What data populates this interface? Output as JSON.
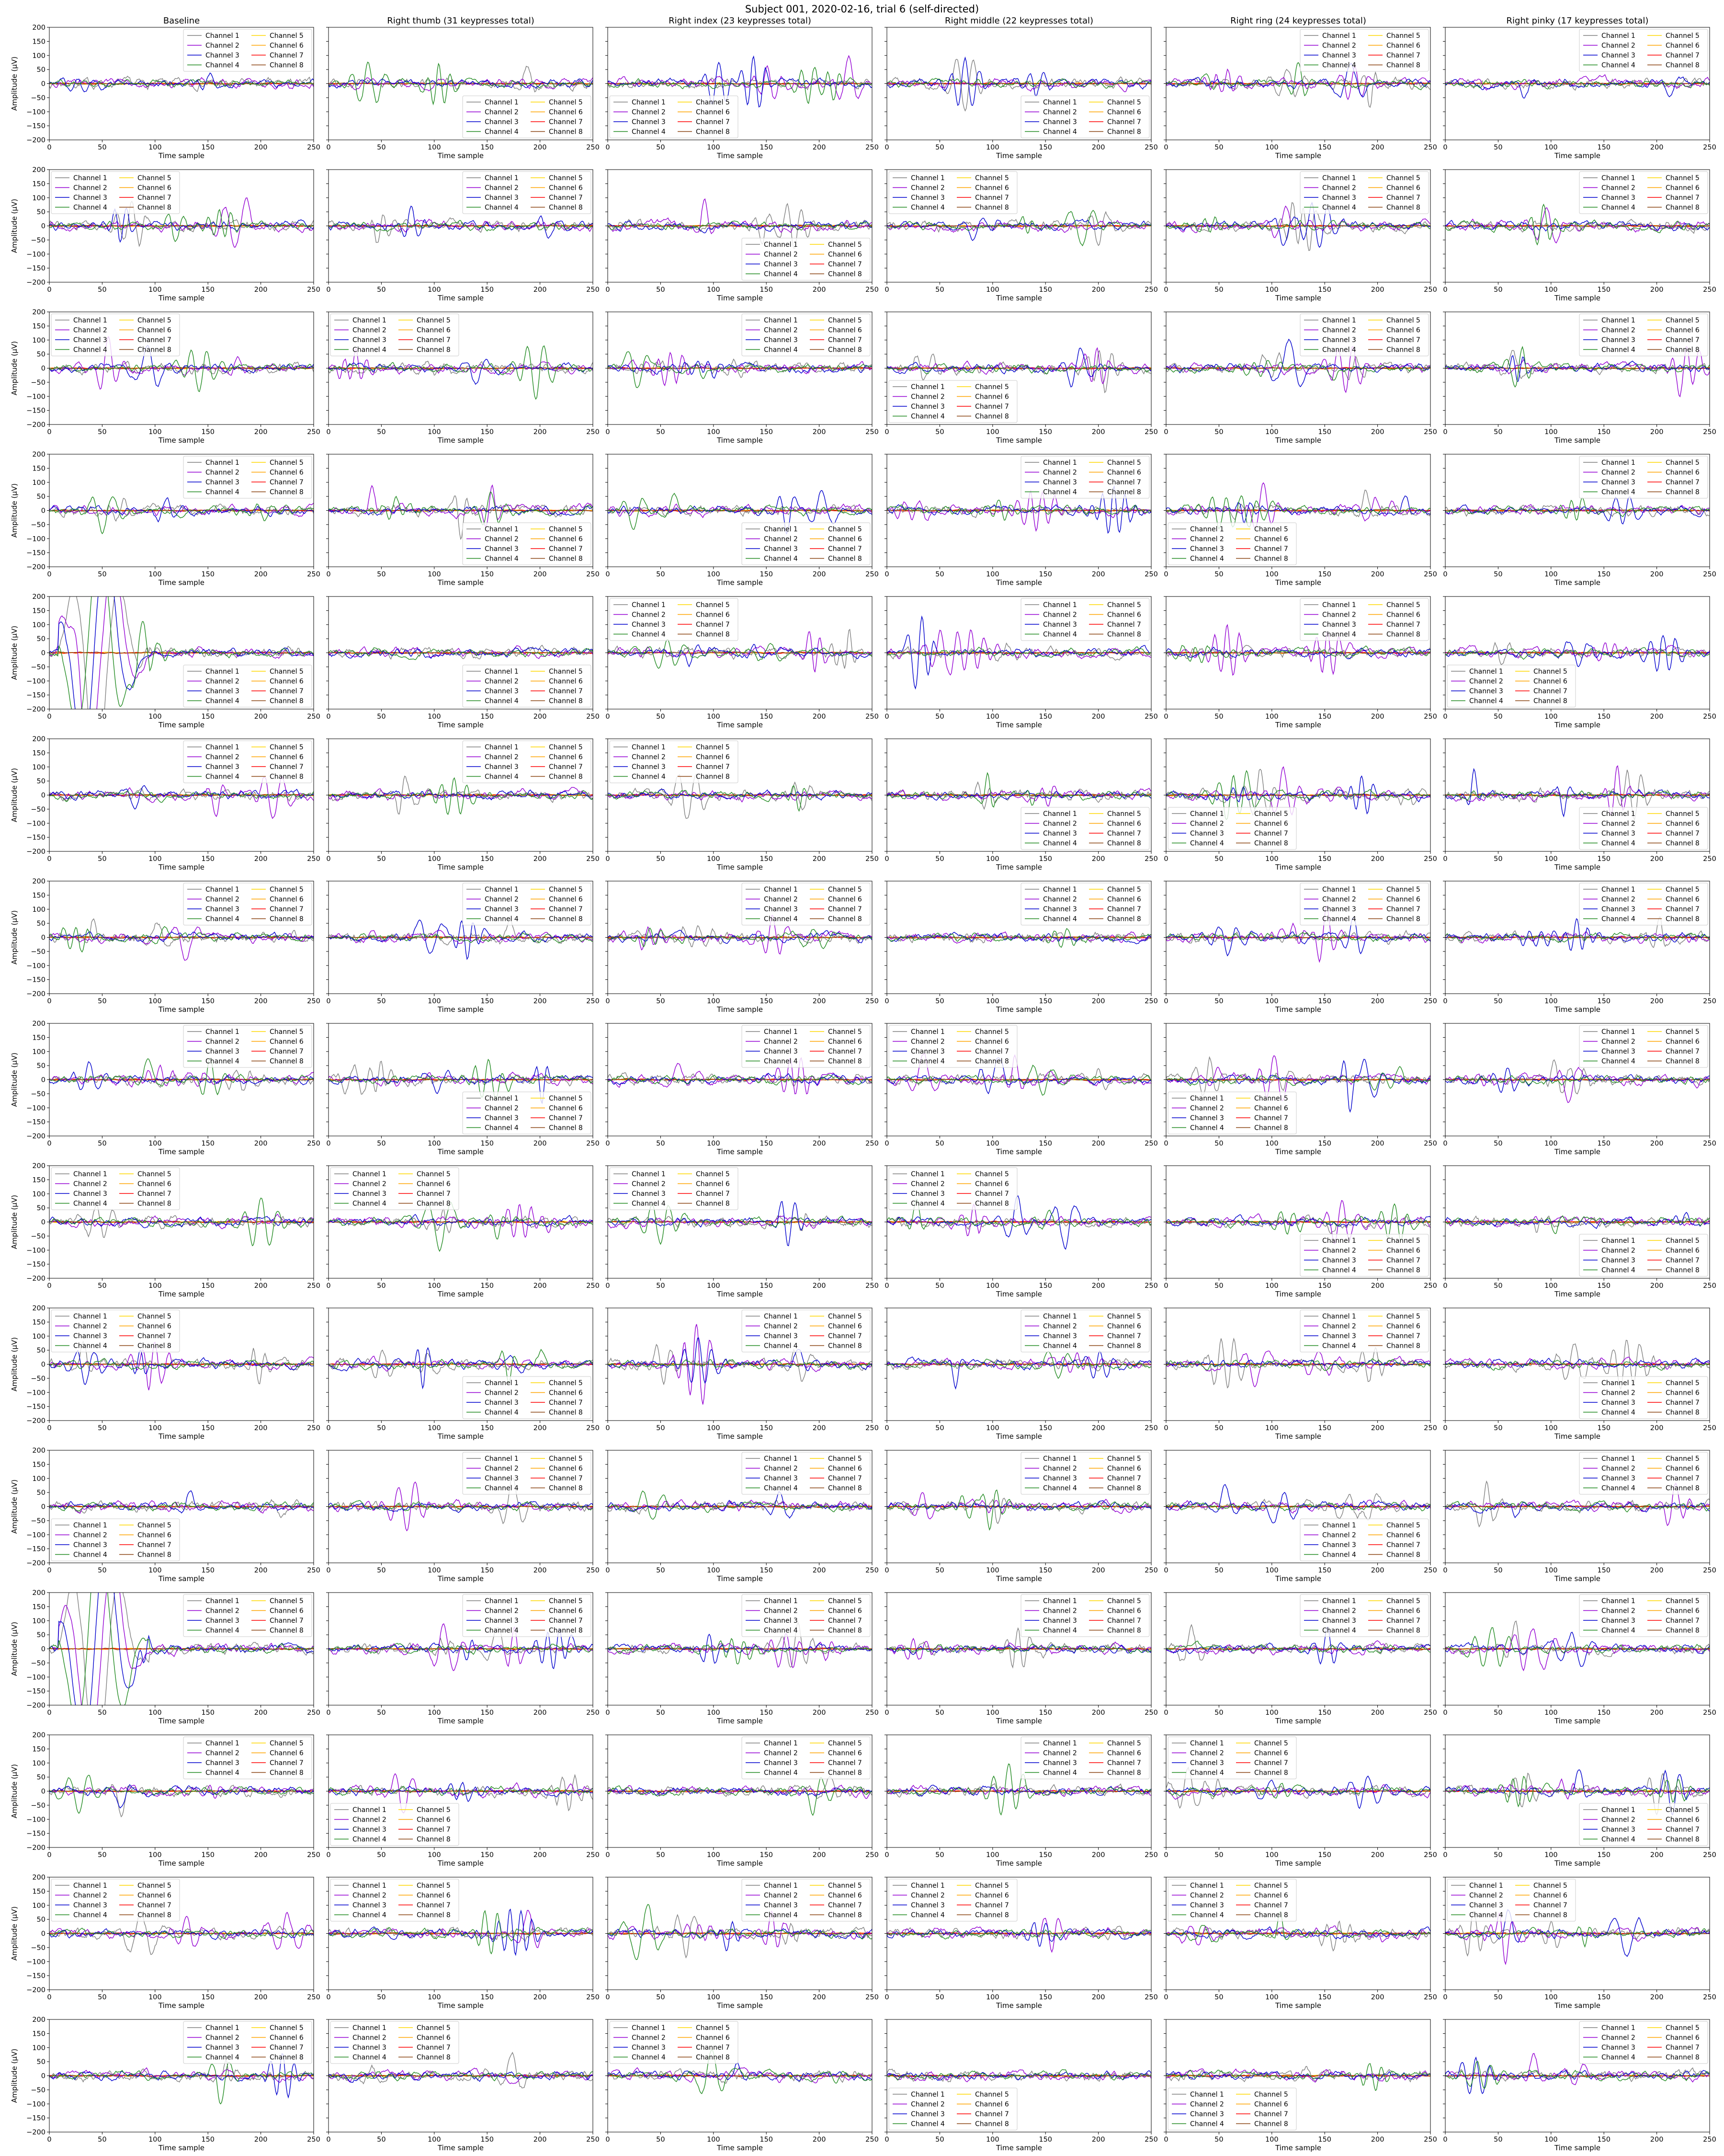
{
  "figure": {
    "suptitle": "Subject 001, 2020-02-16, trial 6 (self-directed)",
    "column_titles": [
      "Baseline",
      "Right thumb (31 keypresses total)",
      "Right index (23 keypresses total)",
      "Right middle (22 keypresses total)",
      "Right ring (24 keypresses total)",
      "Right pinky (17 keypresses total)"
    ]
  },
  "chart_data": {
    "type": "line",
    "layout": {
      "rows": 15,
      "cols": 6
    },
    "xlabel": "Time sample",
    "ylabel": "Amplitude (µV)",
    "xlim": [
      0,
      250
    ],
    "ylim": [
      -200,
      200
    ],
    "xticks": [
      0,
      50,
      100,
      150,
      200,
      250
    ],
    "yticks": [
      -200,
      -150,
      -100,
      -50,
      0,
      50,
      100,
      150,
      200
    ],
    "grid": false,
    "legend_columns": 2,
    "series": [
      {
        "name": "Channel 1",
        "color": "#808080"
      },
      {
        "name": "Channel 2",
        "color": "#9400d3"
      },
      {
        "name": "Channel 3",
        "color": "#0000cd"
      },
      {
        "name": "Channel 4",
        "color": "#228b22"
      },
      {
        "name": "Channel 5",
        "color": "#ffd700"
      },
      {
        "name": "Channel 6",
        "color": "#ffa500"
      },
      {
        "name": "Channel 7",
        "color": "#ff0000"
      },
      {
        "name": "Channel 8",
        "color": "#8b4513"
      }
    ],
    "legend_locations": [
      [
        "upper right",
        "lower right",
        "lower left",
        "lower right",
        "upper right",
        "upper right"
      ],
      [
        "upper left",
        "upper right",
        "lower right",
        "upper left",
        "upper right",
        "upper right"
      ],
      [
        "upper left",
        "upper left",
        "upper right",
        "lower left",
        "upper right",
        "upper right"
      ],
      [
        "upper right",
        "lower right",
        "lower right",
        "upper right",
        "lower left",
        "upper right"
      ],
      [
        "lower right",
        "lower right",
        "upper left",
        "upper right",
        "upper right",
        "lower left"
      ],
      [
        "upper right",
        "upper right",
        "upper left",
        "lower right",
        "lower left",
        "lower right"
      ],
      [
        "upper right",
        "upper right",
        "upper right",
        "upper right",
        "upper right",
        "upper right"
      ],
      [
        "upper right",
        "lower right",
        "upper right",
        "upper left",
        "lower left",
        "upper right"
      ],
      [
        "upper left",
        "upper left",
        "upper left",
        "upper left",
        "lower right",
        "lower right"
      ],
      [
        "upper left",
        "lower right",
        "upper right",
        "upper right",
        "upper right",
        "lower right"
      ],
      [
        "lower left",
        "upper right",
        "upper right",
        "upper right",
        "lower right",
        "upper right"
      ],
      [
        "upper right",
        "upper right",
        "upper right",
        "upper right",
        "upper right",
        "upper right"
      ],
      [
        "upper right",
        "lower left",
        "upper right",
        "upper right",
        "upper left",
        "lower right"
      ],
      [
        "upper left",
        "upper left",
        "upper right",
        "upper left",
        "upper left",
        "upper left"
      ],
      [
        "upper right",
        "upper left",
        "upper left",
        "lower left",
        "lower left",
        "upper right"
      ]
    ],
    "artifact_panels": [
      {
        "row": 5,
        "col": 1,
        "note": "large deflections exceeding y-range near samples 10-60"
      },
      {
        "row": 12,
        "col": 1,
        "note": "large deflections exceeding y-range near samples 15-90"
      }
    ]
  }
}
